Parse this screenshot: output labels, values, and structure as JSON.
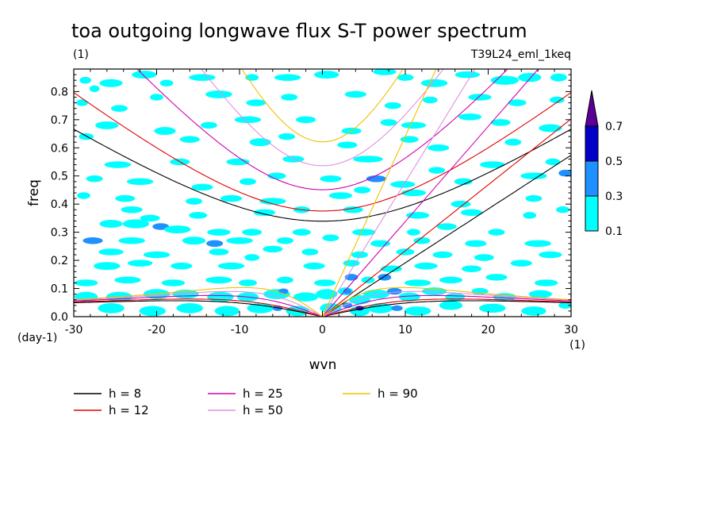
{
  "chart_data": {
    "type": "heatmap",
    "title": "toa outgoing longwave flux S-T power spectrum",
    "subtitle_left": "(1)",
    "subtitle_right": "T39L24_eml_1keq",
    "xlabel": "wvn",
    "ylabel": "freq",
    "x_unit": "(1)",
    "y_unit": "(day-1)",
    "xlim": [
      -30,
      30
    ],
    "ylim": [
      0,
      0.88
    ],
    "x_ticks": [
      "-30",
      "-20",
      "-10",
      "0",
      "10",
      "20",
      "30"
    ],
    "y_ticks": [
      "0.0",
      "0.1",
      "0.2",
      "0.3",
      "0.4",
      "0.5",
      "0.6",
      "0.7",
      "0.8"
    ],
    "colorbar": {
      "levels": [
        "0.1",
        "0.3",
        "0.5",
        "0.7"
      ],
      "colors": [
        "#00ffff",
        "#1e90ff",
        "#0000c8",
        "#5a0096"
      ]
    },
    "dispersion_curves": [
      {
        "label": "h =  8",
        "h": 8,
        "color": "#000000"
      },
      {
        "label": "h = 12",
        "h": 12,
        "color": "#e00000"
      },
      {
        "label": "h = 25",
        "h": 25,
        "color": "#d000b0"
      },
      {
        "label": "h = 50",
        "h": 50,
        "color": "#e090e0"
      },
      {
        "label": "h = 90",
        "h": 90,
        "color": "#f0c000"
      }
    ],
    "blobs": [
      [
        -28.6,
        0.84,
        0.7,
        0.012,
        0.15
      ],
      [
        -27.5,
        0.81,
        0.6,
        0.012,
        0.15
      ],
      [
        -25.5,
        0.83,
        1.4,
        0.014,
        0.15
      ],
      [
        -21.5,
        0.86,
        1.5,
        0.014,
        0.15
      ],
      [
        -18.8,
        0.83,
        0.8,
        0.012,
        0.15
      ],
      [
        -14.5,
        0.85,
        1.6,
        0.012,
        0.15
      ],
      [
        -8.5,
        0.85,
        0.8,
        0.012,
        0.15
      ],
      [
        -4.2,
        0.85,
        1.6,
        0.012,
        0.15
      ],
      [
        0.5,
        0.86,
        1.5,
        0.014,
        0.15
      ],
      [
        7.5,
        0.87,
        1.4,
        0.012,
        0.15
      ],
      [
        10,
        0.85,
        1.0,
        0.012,
        0.15
      ],
      [
        13.5,
        0.83,
        1.6,
        0.014,
        0.15
      ],
      [
        17.5,
        0.86,
        1.5,
        0.012,
        0.15
      ],
      [
        22,
        0.84,
        1.7,
        0.016,
        0.15
      ],
      [
        25,
        0.85,
        1.4,
        0.016,
        0.15
      ],
      [
        28.5,
        0.85,
        1.0,
        0.014,
        0.15
      ],
      [
        -29,
        0.76,
        0.7,
        0.012,
        0.15
      ],
      [
        -24.5,
        0.74,
        1.0,
        0.012,
        0.15
      ],
      [
        -20,
        0.78,
        0.8,
        0.012,
        0.15
      ],
      [
        -12.5,
        0.79,
        1.6,
        0.014,
        0.15
      ],
      [
        -8,
        0.76,
        1.2,
        0.012,
        0.15
      ],
      [
        -4,
        0.78,
        1.0,
        0.012,
        0.15
      ],
      [
        4,
        0.79,
        1.3,
        0.012,
        0.15
      ],
      [
        8.5,
        0.75,
        1.0,
        0.012,
        0.15
      ],
      [
        13,
        0.77,
        0.9,
        0.012,
        0.15
      ],
      [
        19,
        0.78,
        1.4,
        0.012,
        0.15
      ],
      [
        23.5,
        0.76,
        1.1,
        0.012,
        0.15
      ],
      [
        28.3,
        0.77,
        0.9,
        0.012,
        0.15
      ],
      [
        -26,
        0.68,
        1.4,
        0.014,
        0.15
      ],
      [
        -19,
        0.66,
        1.3,
        0.014,
        0.15
      ],
      [
        -13.7,
        0.68,
        1.0,
        0.012,
        0.15
      ],
      [
        -9,
        0.7,
        1.6,
        0.012,
        0.15
      ],
      [
        -2,
        0.7,
        1.2,
        0.012,
        0.15
      ],
      [
        3.5,
        0.66,
        1.2,
        0.012,
        0.15
      ],
      [
        8,
        0.69,
        1.0,
        0.012,
        0.15
      ],
      [
        11,
        0.68,
        1.5,
        0.012,
        0.15
      ],
      [
        17.8,
        0.71,
        1.4,
        0.012,
        0.15
      ],
      [
        21.5,
        0.69,
        1.2,
        0.012,
        0.15
      ],
      [
        27.5,
        0.67,
        1.4,
        0.014,
        0.15
      ],
      [
        -28.5,
        0.64,
        0.9,
        0.012,
        0.15
      ],
      [
        -16,
        0.63,
        1.2,
        0.012,
        0.15
      ],
      [
        -7.5,
        0.62,
        1.3,
        0.014,
        0.15
      ],
      [
        -4.3,
        0.64,
        1.0,
        0.012,
        0.15
      ],
      [
        3,
        0.61,
        1.2,
        0.012,
        0.15
      ],
      [
        10.5,
        0.63,
        1.1,
        0.012,
        0.15
      ],
      [
        14,
        0.6,
        1.3,
        0.012,
        0.15
      ],
      [
        23,
        0.62,
        1.0,
        0.012,
        0.15
      ],
      [
        -24.7,
        0.54,
        1.6,
        0.012,
        0.15
      ],
      [
        -17.2,
        0.55,
        1.2,
        0.012,
        0.15
      ],
      [
        -10.2,
        0.55,
        1.4,
        0.012,
        0.15
      ],
      [
        -3.5,
        0.56,
        1.3,
        0.012,
        0.15
      ],
      [
        5.5,
        0.56,
        1.8,
        0.012,
        0.15
      ],
      [
        13.8,
        0.52,
        1.0,
        0.012,
        0.15
      ],
      [
        20.5,
        0.54,
        1.5,
        0.012,
        0.15
      ],
      [
        27.8,
        0.55,
        0.9,
        0.012,
        0.15
      ],
      [
        -27.5,
        0.49,
        1.0,
        0.012,
        0.15
      ],
      [
        -22,
        0.48,
        1.6,
        0.012,
        0.15
      ],
      [
        -14.5,
        0.46,
        1.3,
        0.012,
        0.15
      ],
      [
        -9,
        0.48,
        1.0,
        0.012,
        0.15
      ],
      [
        -5.5,
        0.5,
        1.1,
        0.012,
        0.15
      ],
      [
        1,
        0.49,
        1.3,
        0.012,
        0.15
      ],
      [
        6.5,
        0.49,
        1.2,
        0.012,
        0.35
      ],
      [
        9.7,
        0.47,
        1.5,
        0.012,
        0.15
      ],
      [
        17,
        0.48,
        1.1,
        0.012,
        0.15
      ],
      [
        25.5,
        0.5,
        1.6,
        0.012,
        0.15
      ],
      [
        29.3,
        0.51,
        0.8,
        0.012,
        0.35
      ],
      [
        -28.8,
        0.43,
        0.8,
        0.012,
        0.15
      ],
      [
        -23.8,
        0.42,
        1.2,
        0.012,
        0.15
      ],
      [
        -15.5,
        0.41,
        1.0,
        0.012,
        0.15
      ],
      [
        -11,
        0.42,
        1.3,
        0.012,
        0.15
      ],
      [
        -6,
        0.41,
        1.6,
        0.012,
        0.15
      ],
      [
        2.2,
        0.43,
        1.4,
        0.012,
        0.15
      ],
      [
        4.8,
        0.45,
        1.0,
        0.012,
        0.15
      ],
      [
        11,
        0.44,
        1.5,
        0.012,
        0.15
      ],
      [
        16.7,
        0.4,
        1.2,
        0.012,
        0.15
      ],
      [
        25.5,
        0.42,
        1.0,
        0.012,
        0.15
      ],
      [
        -23,
        0.38,
        1.3,
        0.012,
        0.15
      ],
      [
        -20.8,
        0.35,
        1.2,
        0.012,
        0.15
      ],
      [
        -15,
        0.36,
        1.1,
        0.012,
        0.15
      ],
      [
        -7,
        0.37,
        1.3,
        0.012,
        0.15
      ],
      [
        -2.5,
        0.38,
        1.0,
        0.012,
        0.15
      ],
      [
        3.7,
        0.38,
        1.2,
        0.012,
        0.15
      ],
      [
        11.5,
        0.36,
        1.4,
        0.012,
        0.15
      ],
      [
        18,
        0.37,
        1.3,
        0.012,
        0.15
      ],
      [
        25,
        0.36,
        0.8,
        0.012,
        0.15
      ],
      [
        29,
        0.38,
        0.8,
        0.012,
        0.15
      ],
      [
        -25.5,
        0.33,
        1.4,
        0.014,
        0.15
      ],
      [
        -22.5,
        0.33,
        1.6,
        0.016,
        0.15
      ],
      [
        -19.5,
        0.32,
        1.0,
        0.012,
        0.35
      ],
      [
        -17.5,
        0.31,
        1.6,
        0.014,
        0.15
      ],
      [
        -12.5,
        0.3,
        1.4,
        0.012,
        0.15
      ],
      [
        -8.5,
        0.3,
        1.2,
        0.012,
        0.15
      ],
      [
        -2.5,
        0.3,
        1.1,
        0.012,
        0.15
      ],
      [
        5,
        0.3,
        1.4,
        0.012,
        0.15
      ],
      [
        11,
        0.3,
        0.8,
        0.012,
        0.15
      ],
      [
        15,
        0.32,
        1.2,
        0.012,
        0.15
      ],
      [
        21,
        0.3,
        1.0,
        0.012,
        0.15
      ],
      [
        -27.7,
        0.27,
        1.2,
        0.012,
        0.35
      ],
      [
        -23,
        0.27,
        1.6,
        0.012,
        0.15
      ],
      [
        -15.5,
        0.27,
        1.4,
        0.014,
        0.15
      ],
      [
        -13,
        0.26,
        1.0,
        0.012,
        0.35
      ],
      [
        -10,
        0.27,
        1.6,
        0.012,
        0.15
      ],
      [
        -4.5,
        0.27,
        1.0,
        0.012,
        0.15
      ],
      [
        1,
        0.28,
        1.0,
        0.012,
        0.15
      ],
      [
        7,
        0.26,
        1.2,
        0.012,
        0.15
      ],
      [
        12,
        0.27,
        1.0,
        0.012,
        0.15
      ],
      [
        18.5,
        0.26,
        1.3,
        0.012,
        0.15
      ],
      [
        26,
        0.26,
        1.6,
        0.012,
        0.15
      ],
      [
        -25.5,
        0.23,
        1.5,
        0.012,
        0.15
      ],
      [
        -20,
        0.22,
        1.6,
        0.012,
        0.15
      ],
      [
        -12.5,
        0.23,
        1.2,
        0.012,
        0.15
      ],
      [
        -6,
        0.24,
        1.2,
        0.012,
        0.15
      ],
      [
        -1.5,
        0.23,
        1.0,
        0.012,
        0.15
      ],
      [
        4.5,
        0.22,
        1.0,
        0.012,
        0.15
      ],
      [
        10,
        0.23,
        1.1,
        0.012,
        0.15
      ],
      [
        14.5,
        0.22,
        1.2,
        0.012,
        0.15
      ],
      [
        19.5,
        0.21,
        1.2,
        0.012,
        0.15
      ],
      [
        27.5,
        0.22,
        1.4,
        0.012,
        0.15
      ],
      [
        -26,
        0.18,
        1.6,
        0.014,
        0.15
      ],
      [
        -22,
        0.19,
        1.5,
        0.012,
        0.15
      ],
      [
        -17,
        0.18,
        1.3,
        0.012,
        0.15
      ],
      [
        -11,
        0.18,
        1.6,
        0.012,
        0.15
      ],
      [
        -8.5,
        0.21,
        0.9,
        0.012,
        0.15
      ],
      [
        -1,
        0.18,
        1.3,
        0.012,
        0.15
      ],
      [
        3.5,
        0.19,
        1.0,
        0.012,
        0.15
      ],
      [
        8.3,
        0.17,
        1.3,
        0.012,
        0.15
      ],
      [
        12.5,
        0.18,
        1.4,
        0.012,
        0.15
      ],
      [
        18,
        0.17,
        1.2,
        0.012,
        0.15
      ],
      [
        24,
        0.19,
        1.3,
        0.012,
        0.15
      ],
      [
        -28.5,
        0.12,
        1.4,
        0.012,
        0.15
      ],
      [
        -23.5,
        0.13,
        1.6,
        0.012,
        0.15
      ],
      [
        -18,
        0.12,
        1.4,
        0.012,
        0.15
      ],
      [
        -12.5,
        0.13,
        1.6,
        0.012,
        0.15
      ],
      [
        -9,
        0.12,
        1.1,
        0.012,
        0.15
      ],
      [
        -4.5,
        0.13,
        1.0,
        0.012,
        0.15
      ],
      [
        0.3,
        0.12,
        1.3,
        0.012,
        0.15
      ],
      [
        3.5,
        0.14,
        0.8,
        0.012,
        0.35
      ],
      [
        5.5,
        0.13,
        0.8,
        0.012,
        0.15
      ],
      [
        7.5,
        0.14,
        0.8,
        0.012,
        0.35
      ],
      [
        11.5,
        0.12,
        1.6,
        0.012,
        0.15
      ],
      [
        15.5,
        0.13,
        1.4,
        0.012,
        0.15
      ],
      [
        21,
        0.14,
        1.3,
        0.012,
        0.15
      ],
      [
        27,
        0.12,
        1.4,
        0.012,
        0.15
      ],
      [
        -28.5,
        0.07,
        1.4,
        0.018,
        0.15
      ],
      [
        -24.5,
        0.07,
        1.6,
        0.018,
        0.15
      ],
      [
        -20,
        0.08,
        1.6,
        0.018,
        0.15
      ],
      [
        -16.5,
        0.08,
        1.6,
        0.016,
        0.15
      ],
      [
        -12.3,
        0.07,
        1.6,
        0.018,
        0.15
      ],
      [
        -9,
        0.07,
        1.3,
        0.016,
        0.15
      ],
      [
        -5.5,
        0.08,
        1.6,
        0.018,
        0.15
      ],
      [
        -4.7,
        0.09,
        0.6,
        0.01,
        0.35
      ],
      [
        -2,
        0.07,
        1.5,
        0.016,
        0.15
      ],
      [
        0.5,
        0.08,
        1.3,
        0.018,
        0.15
      ],
      [
        2.8,
        0.09,
        0.9,
        0.014,
        0.15
      ],
      [
        3,
        0.09,
        0.5,
        0.01,
        0.35
      ],
      [
        4.5,
        0.06,
        1.3,
        0.016,
        0.15
      ],
      [
        6.5,
        0.08,
        1.6,
        0.016,
        0.15
      ],
      [
        8.7,
        0.09,
        0.9,
        0.012,
        0.35
      ],
      [
        10.5,
        0.07,
        1.3,
        0.016,
        0.15
      ],
      [
        13.5,
        0.09,
        1.5,
        0.014,
        0.15
      ],
      [
        16,
        0.07,
        1.2,
        0.014,
        0.15
      ],
      [
        19,
        0.09,
        1.0,
        0.012,
        0.15
      ],
      [
        22,
        0.07,
        1.4,
        0.014,
        0.15
      ],
      [
        26.3,
        0.08,
        1.4,
        0.014,
        0.15
      ],
      [
        -25.5,
        0.03,
        1.6,
        0.018,
        0.15
      ],
      [
        -20.5,
        0.02,
        1.6,
        0.018,
        0.15
      ],
      [
        -16,
        0.03,
        1.6,
        0.018,
        0.15
      ],
      [
        -11.5,
        0.02,
        1.5,
        0.018,
        0.15
      ],
      [
        -7.5,
        0.03,
        1.6,
        0.018,
        0.15
      ],
      [
        -5.4,
        0.03,
        0.6,
        0.01,
        0.35
      ],
      [
        -3,
        0.02,
        1.4,
        0.018,
        0.15
      ],
      [
        1,
        0.03,
        1.3,
        0.018,
        0.15
      ],
      [
        3,
        0.04,
        0.6,
        0.01,
        0.35
      ],
      [
        4.5,
        0.02,
        1.2,
        0.018,
        0.15
      ],
      [
        4.5,
        0.03,
        0.5,
        0.008,
        0.55
      ],
      [
        7,
        0.03,
        1.5,
        0.018,
        0.15
      ],
      [
        9,
        0.03,
        0.7,
        0.01,
        0.35
      ],
      [
        11.5,
        0.02,
        1.6,
        0.016,
        0.15
      ],
      [
        15.5,
        0.04,
        1.4,
        0.016,
        0.15
      ],
      [
        20.5,
        0.03,
        1.6,
        0.016,
        0.15
      ],
      [
        25.5,
        0.02,
        1.5,
        0.016,
        0.15
      ],
      [
        29.3,
        0.04,
        0.8,
        0.012,
        0.15
      ]
    ]
  }
}
